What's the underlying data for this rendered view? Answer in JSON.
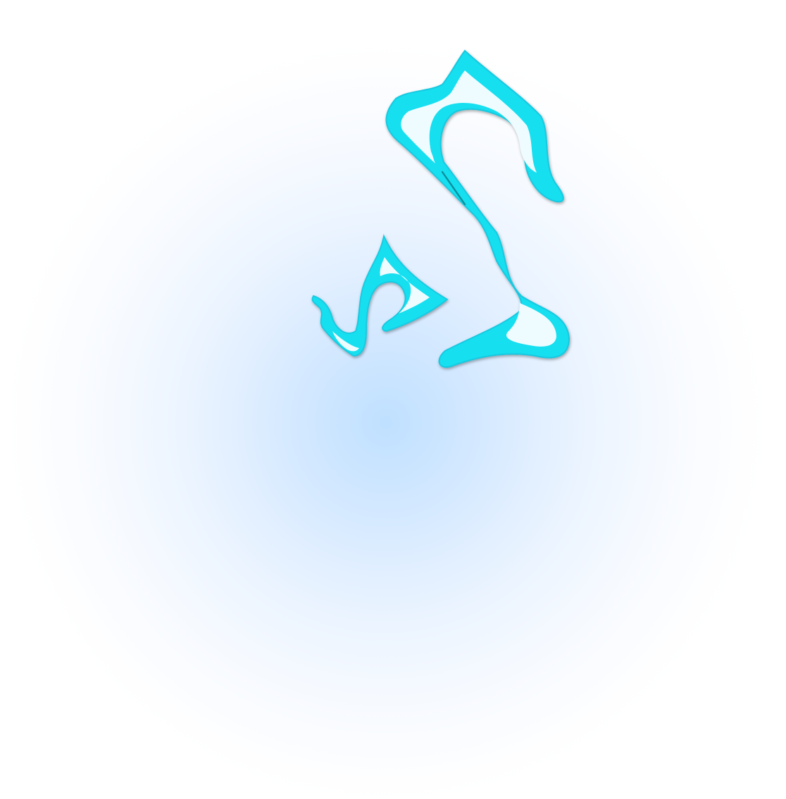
{
  "image": {
    "background": "#ffffff",
    "glow_color": "#bfe0ff",
    "glyph_stroke": "#19dff0",
    "glyph_fill": "#eefcff",
    "glyph_shadow": "#0b6c78",
    "elements": [
      {
        "name": "radial-glow",
        "kind": "soft blue radial gradient"
      },
      {
        "name": "large-lightning-glyph",
        "kind": "stylized cyan swirl"
      },
      {
        "name": "small-lightning-glyph",
        "kind": "stylized cyan swirl"
      }
    ]
  }
}
